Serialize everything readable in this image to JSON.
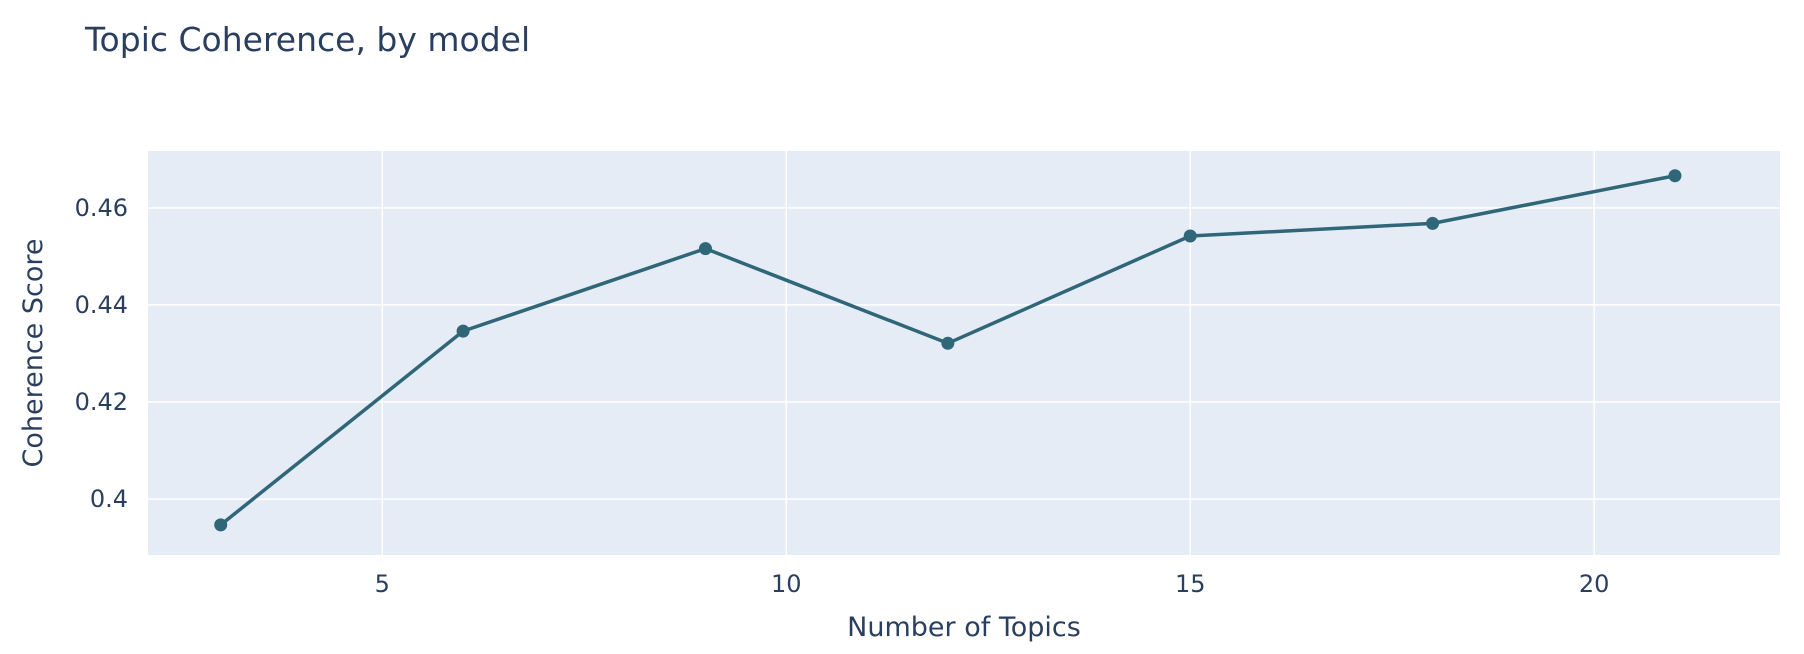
{
  "chart_data": {
    "type": "line",
    "title": "Topic Coherence, by model",
    "xlabel": "Number of Topics",
    "ylabel": "Coherence Score",
    "x": [
      3,
      6,
      9,
      12,
      15,
      18,
      21
    ],
    "series": [
      {
        "values": [
          0.3947,
          0.4346,
          0.4516,
          0.4321,
          0.4542,
          0.4568,
          0.4666
        ]
      }
    ],
    "xlim": [
      2.1,
      22.3
    ],
    "ylim": [
      0.3885,
      0.4717
    ],
    "xticks": [
      5,
      10,
      15,
      20
    ],
    "xtick_labels": [
      "5",
      "10",
      "15",
      "20"
    ],
    "yticks": [
      0.4,
      0.42,
      0.44,
      0.46
    ],
    "ytick_labels": [
      "0.4",
      "0.42",
      "0.44",
      "0.46"
    ],
    "grid": true,
    "legend": "none",
    "colors": {
      "line": "#2f6678",
      "plot_background": "#e5ecf6",
      "grid": "#ffffff",
      "text": "#2a3f5f"
    }
  }
}
